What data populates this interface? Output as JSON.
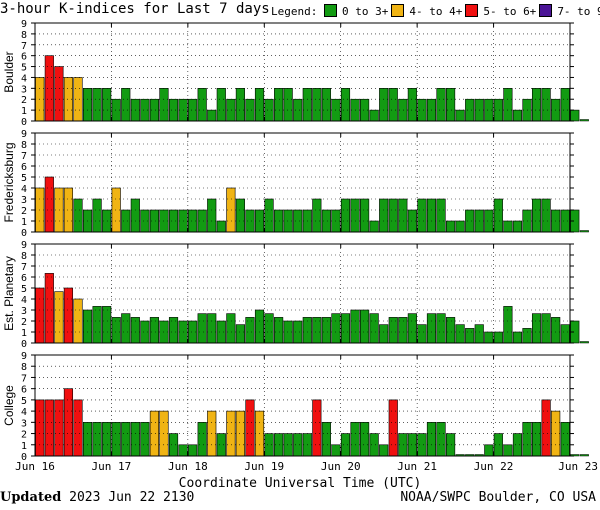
{
  "header": {
    "title": "3-hour K-indices for Last 7 days",
    "legend_label": "Legend:",
    "legend": [
      {
        "label": "0 to 3+",
        "color": "#129b12"
      },
      {
        "label": "4- to 4+",
        "color": "#f0b414"
      },
      {
        "label": "5- to 6+",
        "color": "#f01010"
      },
      {
        "label": "7- to 9",
        "color": "#4b1496"
      }
    ]
  },
  "footer": {
    "updated_label": "Updated",
    "updated_value": "2023 Jun 22 2130",
    "credit": "NOAA/SWPC Boulder, CO USA"
  },
  "chart_data": {
    "type": "bar",
    "xlabel": "Coordinate Universal Time (UTC)",
    "x_ticks": [
      "Jun 16",
      "Jun 17",
      "Jun 18",
      "Jun 19",
      "Jun 20",
      "Jun 21",
      "Jun 22",
      "Jun 23"
    ],
    "ylim": [
      0,
      9
    ],
    "y_ticks": [
      0,
      1,
      2,
      3,
      4,
      5,
      6,
      7,
      8,
      9
    ],
    "color_thresholds": {
      "green_max": 3.67,
      "yellow_max": 4.67,
      "red_max": 6.67
    },
    "panels": [
      {
        "name": "Boulder",
        "values": [
          4,
          6,
          5,
          4,
          4,
          3,
          3,
          3,
          2,
          3,
          2,
          2,
          2,
          3,
          2,
          2,
          2,
          3,
          1,
          3,
          2,
          3,
          2,
          3,
          2,
          3,
          3,
          2,
          3,
          3,
          3,
          2,
          3,
          2,
          2,
          1,
          3,
          3,
          2,
          3,
          2,
          2,
          3,
          3,
          1,
          2,
          2,
          2,
          2,
          3,
          1,
          2,
          3,
          3,
          2,
          3,
          1,
          0
        ]
      },
      {
        "name": "Fredericksburg",
        "values": [
          4,
          5,
          4,
          4,
          3,
          2,
          3,
          2,
          4,
          2,
          3,
          2,
          2,
          2,
          2,
          2,
          2,
          2,
          3,
          1,
          4,
          3,
          2,
          2,
          3,
          2,
          2,
          2,
          2,
          3,
          2,
          2,
          3,
          3,
          3,
          1,
          3,
          3,
          3,
          2,
          3,
          3,
          3,
          1,
          1,
          2,
          2,
          2,
          3,
          1,
          1,
          2,
          3,
          3,
          2,
          2,
          2,
          0
        ]
      },
      {
        "name": "Est. Planetary",
        "values": [
          5,
          6.33,
          4.67,
          5,
          4,
          3,
          3.33,
          3.33,
          2.33,
          2.67,
          2.33,
          2,
          2.33,
          2,
          2.33,
          2,
          2,
          2.67,
          2.67,
          2,
          2.67,
          1.67,
          2.33,
          3,
          2.67,
          2.33,
          2,
          2,
          2.33,
          2.33,
          2.33,
          2.67,
          2.67,
          3,
          3,
          2.67,
          1.67,
          2.33,
          2.33,
          2.67,
          1.67,
          2.67,
          2.67,
          2.33,
          1.67,
          1.33,
          1.67,
          1,
          1,
          3.33,
          1,
          1.33,
          2.67,
          2.67,
          2.33,
          1.67,
          2,
          0
        ]
      },
      {
        "name": "College",
        "values": [
          5,
          5,
          5,
          6,
          5,
          3,
          3,
          3,
          3,
          3,
          3,
          3,
          4,
          4,
          2,
          1,
          1,
          3,
          4,
          2,
          4,
          4,
          5,
          4,
          2,
          2,
          2,
          2,
          2,
          5,
          3,
          1,
          2,
          3,
          3,
          2,
          1,
          5,
          2,
          2,
          2,
          3,
          3,
          2,
          0,
          0,
          0,
          1,
          2,
          1,
          2,
          3,
          3,
          5,
          4,
          3,
          0,
          0
        ]
      }
    ]
  }
}
